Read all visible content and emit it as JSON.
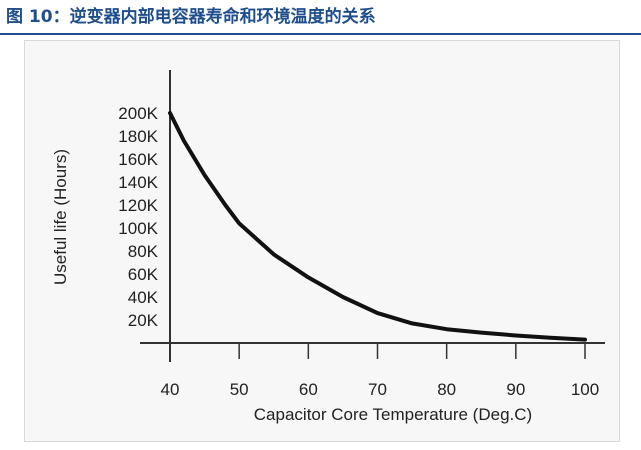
{
  "figure": {
    "title": "图 10：逆变器内部电容器寿命和环境温度的关系",
    "title_color": "#1f4e8c"
  },
  "chart_data": {
    "type": "line",
    "title": "",
    "xlabel": "Capacitor Core Temperature (Deg.C)",
    "ylabel": "Useful life (Hours)",
    "x_ticks": [
      "40",
      "50",
      "60",
      "70",
      "80",
      "90",
      "100"
    ],
    "y_ticks": [
      "20K",
      "40K",
      "60K",
      "80K",
      "100K",
      "120K",
      "140K",
      "160K",
      "180K",
      "200K"
    ],
    "xlim": [
      40,
      100
    ],
    "ylim": [
      0,
      200000
    ],
    "grid": false,
    "series": [
      {
        "x": [
          40,
          42,
          45,
          48,
          50,
          55,
          60,
          65,
          70,
          75,
          80,
          85,
          90,
          95,
          100
        ],
        "y": [
          200000,
          176000,
          146000,
          120000,
          104000,
          77000,
          57000,
          40000,
          26000,
          17000,
          12000,
          9000,
          6500,
          4500,
          3000
        ]
      }
    ],
    "line_color": "#111111"
  }
}
